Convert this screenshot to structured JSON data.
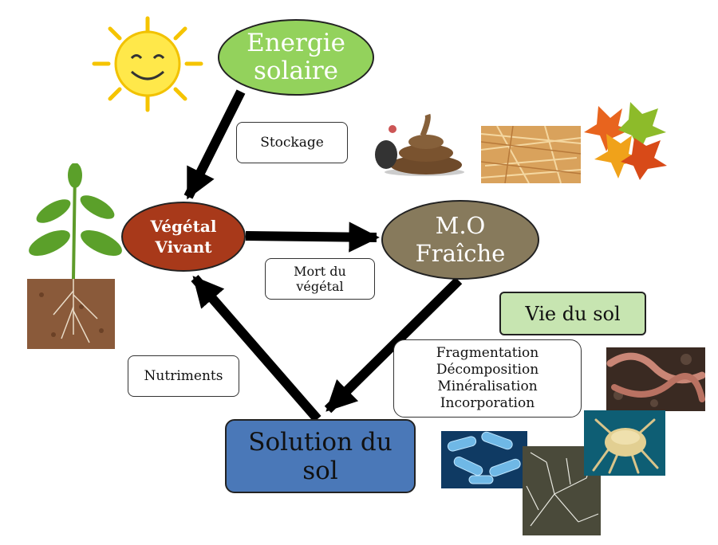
{
  "nodes": {
    "energie": [
      "Energie",
      "solaire"
    ],
    "vegetal": [
      "Végétal",
      "Vivant"
    ],
    "mo": [
      "M.O",
      "Fraîche"
    ],
    "solution": [
      "Solution du",
      "sol"
    ],
    "vie_du_sol": "Vie du sol"
  },
  "edge_labels": {
    "stockage": "Stockage",
    "mort": [
      "Mort du",
      "végétal"
    ],
    "nutriments": "Nutriments",
    "processes": [
      "Fragmentation",
      "Décomposition",
      "Minéralisation",
      "Incorporation"
    ]
  },
  "colors": {
    "energie": "#93d25c",
    "vegetal": "#a8391a",
    "mo": "#877a5c",
    "solution": "#4a78b8",
    "vie_du_sol": "#c7e5b1",
    "arrow": "#000000"
  },
  "images": [
    "sun-icon",
    "plant-icon",
    "manure-icon",
    "straw-icon",
    "autumn-leaves-icon",
    "earthworm-icon",
    "bacteria-icon",
    "fungi-icon",
    "mite-icon"
  ]
}
